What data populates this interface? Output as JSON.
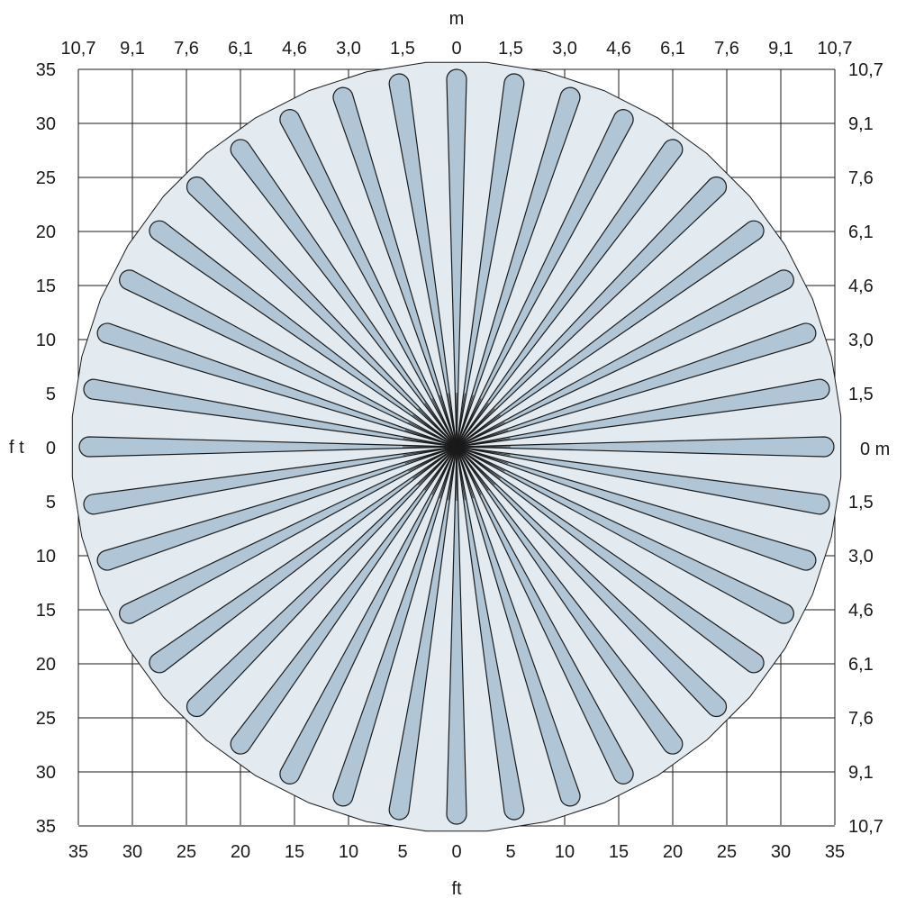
{
  "diagram": {
    "top_unit": "m",
    "bottom_unit": "ft",
    "left_unit": "f t",
    "right_unit": "0 m",
    "top_labels": [
      "10,7",
      "9,1",
      "7,6",
      "6,1",
      "4,6",
      "3,0",
      "1,5",
      "0",
      "1,5",
      "3,0",
      "4,6",
      "6,1",
      "7,6",
      "9,1",
      "10,7"
    ],
    "bottom_labels": [
      "35",
      "30",
      "25",
      "20",
      "15",
      "10",
      "5",
      "0",
      "5",
      "10",
      "15",
      "20",
      "25",
      "30",
      "35"
    ],
    "left_labels": [
      "35",
      "30",
      "25",
      "20",
      "15",
      "10",
      "5",
      "0",
      "5",
      "10",
      "15",
      "20",
      "25",
      "30",
      "35"
    ],
    "right_labels": [
      "10,7",
      "9,1",
      "7,6",
      "6,1",
      "4,6",
      "3,0",
      "1,5",
      "",
      "1,5",
      "3,0",
      "4,6",
      "6,1",
      "7,6",
      "9,1",
      "10,7"
    ],
    "beam_count": 40,
    "colors": {
      "coverage_fill": "#e3ebf1",
      "beam_fill": "#b0c6d6",
      "line": "#1a1a1a"
    }
  }
}
